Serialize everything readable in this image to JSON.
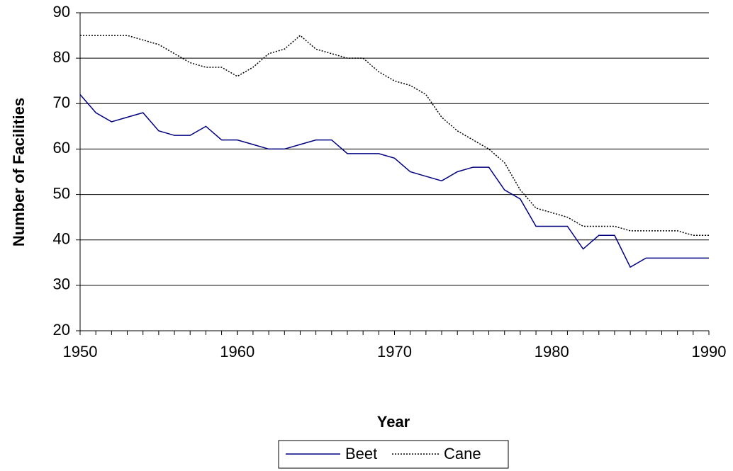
{
  "chart_data": {
    "type": "line",
    "x_label": "Year",
    "y_label": "Number of Facilities",
    "x": [
      1950,
      1951,
      1952,
      1953,
      1954,
      1955,
      1956,
      1957,
      1958,
      1959,
      1960,
      1961,
      1962,
      1963,
      1964,
      1965,
      1966,
      1967,
      1968,
      1969,
      1970,
      1971,
      1972,
      1973,
      1974,
      1975,
      1976,
      1977,
      1978,
      1979,
      1980,
      1981,
      1982,
      1983,
      1984,
      1985,
      1986,
      1987,
      1988,
      1989,
      1990
    ],
    "series": [
      {
        "name": "Beet",
        "color": "#000080",
        "dash": "none",
        "values": [
          72,
          68,
          66,
          67,
          68,
          64,
          63,
          63,
          65,
          62,
          62,
          61,
          60,
          60,
          61,
          62,
          62,
          59,
          59,
          59,
          58,
          55,
          54,
          53,
          55,
          56,
          56,
          51,
          49,
          43,
          43,
          43,
          38,
          41,
          41,
          34,
          36,
          36,
          36,
          36,
          36
        ]
      },
      {
        "name": "Cane",
        "color": "#000000",
        "dash": "2,2",
        "values": [
          85,
          85,
          85,
          85,
          84,
          83,
          81,
          79,
          78,
          78,
          76,
          78,
          81,
          82,
          85,
          82,
          81,
          80,
          80,
          77,
          75,
          74,
          72,
          67,
          64,
          62,
          60,
          57,
          51,
          47,
          46,
          45,
          43,
          43,
          43,
          42,
          42,
          42,
          42,
          41,
          41
        ]
      }
    ],
    "xlim": [
      1950,
      1990
    ],
    "xticks": [
      1950,
      1960,
      1970,
      1980,
      1990
    ],
    "ylim": [
      20,
      90
    ],
    "yticks": [
      20,
      30,
      40,
      50,
      60,
      70,
      80,
      90
    ],
    "grid": true,
    "legend": "bottom"
  }
}
